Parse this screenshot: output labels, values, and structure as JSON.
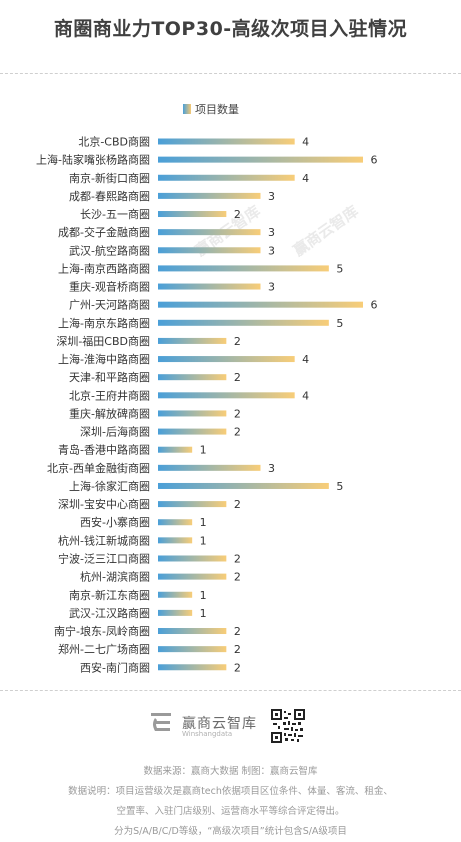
{
  "title": "商圈商业力TOP30-高级次项目入驻情况",
  "legend": {
    "label": "项目数量"
  },
  "chart_data": {
    "type": "bar",
    "orientation": "horizontal",
    "categories": [
      "北京-CBD商圈",
      "上海-陆家嘴张杨路商圈",
      "南京-新街口商圈",
      "成都-春熙路商圈",
      "长沙-五一商圈",
      "成都-交子金融商圈",
      "武汉-航空路商圈",
      "上海-南京西路商圈",
      "重庆-观音桥商圈",
      "广州-天河路商圈",
      "上海-南京东路商圈",
      "深圳-福田CBD商圈",
      "上海-淮海中路商圈",
      "天津-和平路商圈",
      "北京-王府井商圈",
      "重庆-解放碑商圈",
      "深圳-后海商圈",
      "青岛-香港中路商圈",
      "北京-西单金融街商圈",
      "上海-徐家汇商圈",
      "深圳-宝安中心商圈",
      "西安-小寨商圈",
      "杭州-钱江新城商圈",
      "宁波-泛三江口商圈",
      "杭州-湖滨商圈",
      "南京-新江东商圈",
      "武汉-江汉路商圈",
      "南宁-埌东-凤岭商圈",
      "郑州-二七广场商圈",
      "西安-南门商圈"
    ],
    "series": [
      {
        "name": "项目数量",
        "values": [
          4,
          6,
          4,
          3,
          2,
          3,
          3,
          5,
          3,
          6,
          5,
          2,
          4,
          2,
          4,
          2,
          2,
          1,
          3,
          5,
          2,
          1,
          1,
          2,
          2,
          1,
          1,
          2,
          2,
          2
        ]
      }
    ],
    "xlim": [
      0,
      6
    ],
    "grid": false,
    "legend_position": "top",
    "colors": {
      "bar_start": "#4a9fd8",
      "bar_end": "#f8cd78"
    }
  },
  "watermark": "赢商云智库",
  "footer": {
    "brand": "赢商云智库",
    "brand_sub": "Winshangdata",
    "lines": [
      "数据来源：赢商大数据  制图：赢商云智库",
      "数据说明：项目运营级次是赢商tech依据项目区位条件、体量、客流、租金、",
      "空置率、入驻门店级别、运营商水平等综合评定得出。",
      "分为S/A/B/C/D等级，“高级次项目”统计包含S/A级项目"
    ]
  }
}
